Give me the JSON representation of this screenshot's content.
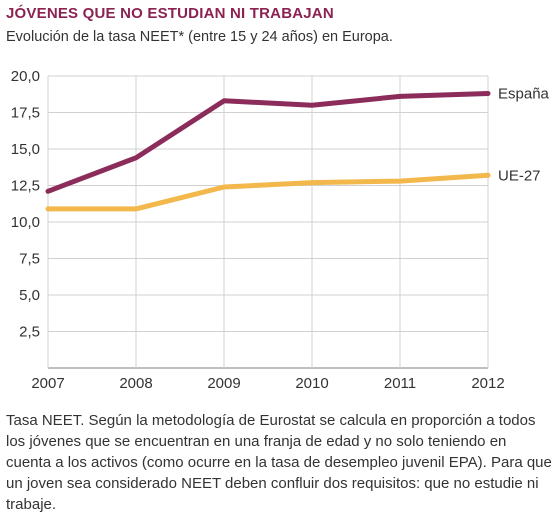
{
  "header": {
    "title": "JÓVENES QUE NO ESTUDIAN NI TRABAJAN",
    "subtitle": "Evolución de la tasa NEET* (entre 15 y 24 años) en Europa."
  },
  "chart_data": {
    "type": "line",
    "x": [
      2007,
      2008,
      2009,
      2010,
      2011,
      2012
    ],
    "x_tick_labels": [
      "2007",
      "2008",
      "2009",
      "2010",
      "2011",
      "2012"
    ],
    "ylim": [
      0,
      20
    ],
    "y_ticks": [
      2.5,
      5.0,
      7.5,
      10.0,
      12.5,
      15.0,
      17.5,
      20.0
    ],
    "y_tick_labels": [
      "2,5",
      "5,0",
      "7,5",
      "10,0",
      "12,5",
      "15,0",
      "17,5",
      "20,0"
    ],
    "grid": "horizontal",
    "series": [
      {
        "name": "España",
        "values": [
          12.1,
          14.4,
          18.3,
          18.0,
          18.6,
          18.8
        ],
        "color": "#8b2c5a"
      },
      {
        "name": "UE-27",
        "values": [
          10.9,
          10.9,
          12.4,
          12.7,
          12.8,
          13.2
        ],
        "color": "#f2b84b"
      }
    ]
  },
  "note": {
    "text": "Tasa NEET. Según la metodología de Eurostat se calcula en proporción a todos los jóvenes que se encuentran en una franja de edad y no solo teniendo en cuenta a los activos (como ocurre en la tasa de desempleo juvenil EPA). Para que un joven sea considerado NEET deben confluir dos requisitos: que no estudie ni trabaje."
  }
}
